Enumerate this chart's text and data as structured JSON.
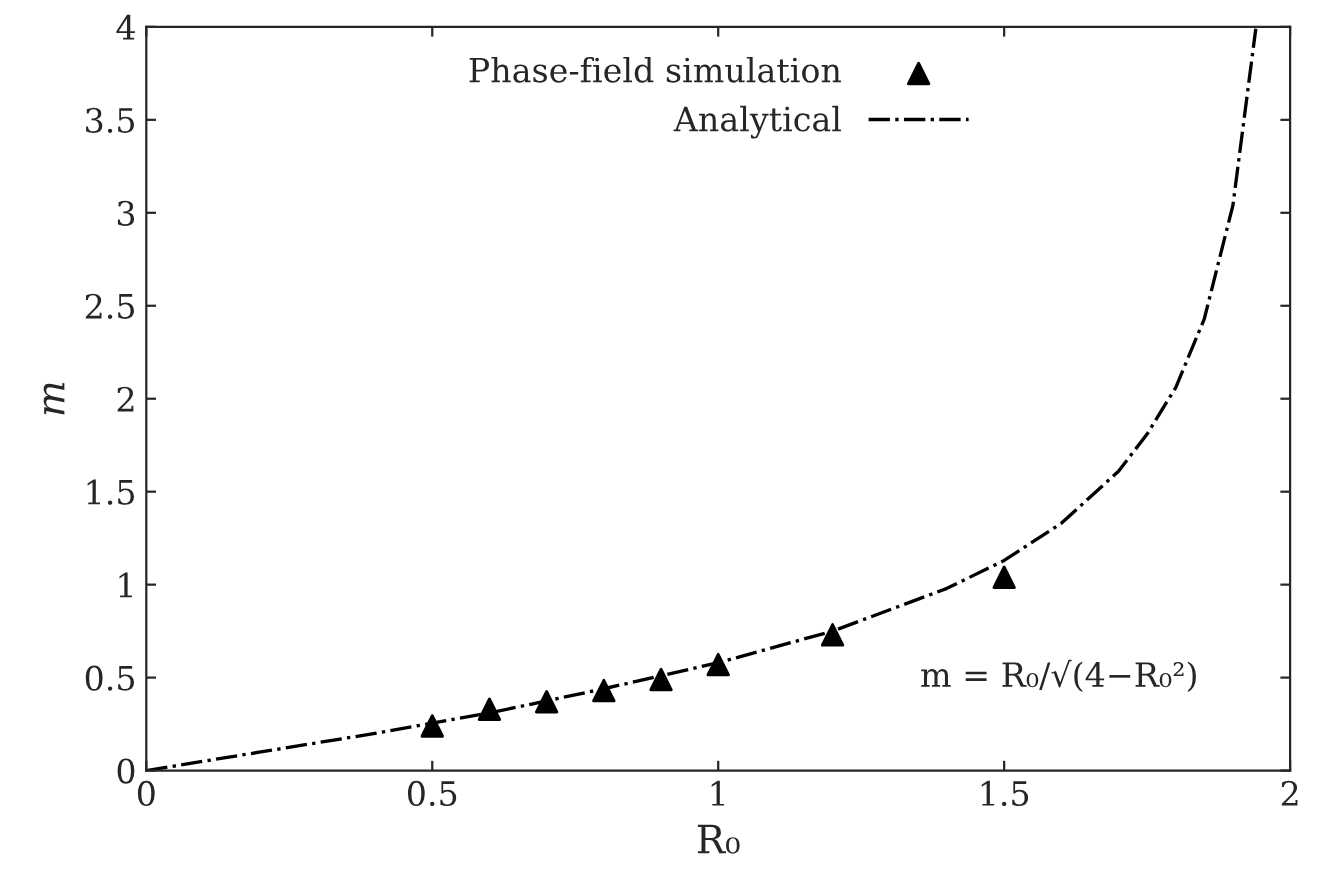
{
  "chart_data": {
    "type": "scatter",
    "xlabel": "R₀",
    "ylabel": "m",
    "xlim": [
      0,
      2
    ],
    "ylim": [
      0,
      4
    ],
    "xticks": [
      0,
      0.5,
      1,
      1.5,
      2
    ],
    "yticks": [
      0,
      0.5,
      1,
      1.5,
      2,
      2.5,
      3,
      3.5,
      4
    ],
    "grid": false,
    "legend": "top",
    "annotations": [
      "m = R₀/√(4−R₀²)"
    ],
    "series": [
      {
        "name": "Phase-field simulation",
        "type": "scatter",
        "marker": "triangle",
        "color": "#000000",
        "x": [
          0.5,
          0.6,
          0.7,
          0.8,
          0.9,
          1.0,
          1.2,
          1.5
        ],
        "values": [
          0.24,
          0.33,
          0.37,
          0.43,
          0.49,
          0.57,
          0.73,
          1.04
        ]
      },
      {
        "name": "Analytical",
        "type": "line",
        "marker": "none",
        "line_style": "dashdot",
        "color": "#000000",
        "x": [
          0,
          0.2,
          0.4,
          0.6,
          0.8,
          1.0,
          1.2,
          1.4,
          1.5,
          1.6,
          1.7,
          1.75,
          1.8,
          1.85,
          1.9,
          1.94
        ],
        "values": [
          0,
          0.1,
          0.2,
          0.31,
          0.44,
          0.58,
          0.75,
          0.98,
          1.13,
          1.33,
          1.61,
          1.81,
          2.06,
          2.43,
          3.04,
          3.99
        ]
      }
    ]
  }
}
